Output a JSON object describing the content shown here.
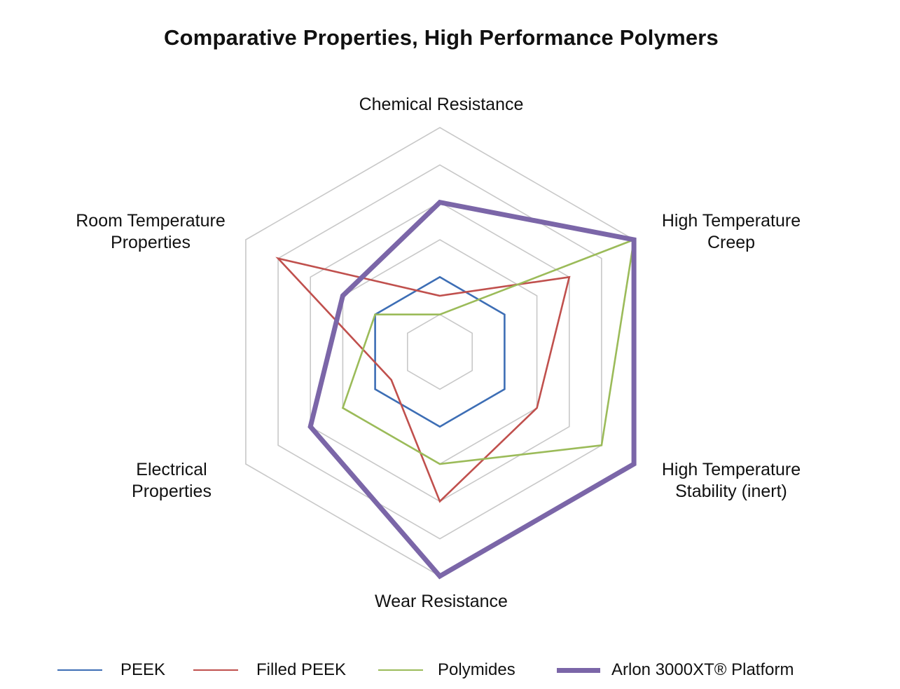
{
  "chart_data": {
    "type": "radar",
    "title": "Comparative Properties, High Performance Polymers",
    "axes": [
      {
        "lines": [
          "Chemical Resistance"
        ]
      },
      {
        "lines": [
          "High Temperature",
          "Creep"
        ]
      },
      {
        "lines": [
          "High Temperature",
          "Stability (inert)"
        ]
      },
      {
        "lines": [
          "Wear Resistance"
        ]
      },
      {
        "lines": [
          "Electrical",
          "Properties"
        ]
      },
      {
        "lines": [
          "Room Temperature",
          "Properties"
        ]
      }
    ],
    "scale": {
      "min": 0,
      "max": 6,
      "rings": 6
    },
    "grid": true,
    "legend_position": "bottom",
    "series": [
      {
        "name": "PEEK",
        "color": "#3d6eb5",
        "width": "thin",
        "values": [
          2,
          2,
          2,
          2,
          2,
          2
        ]
      },
      {
        "name": "Filled PEEK",
        "color": "#c0504d",
        "width": "thin",
        "values": [
          1.5,
          4,
          3,
          4,
          1.5,
          5
        ]
      },
      {
        "name": "Polymides",
        "color": "#9bbb59",
        "width": "thin",
        "values": [
          1,
          6,
          5,
          3,
          3,
          2
        ]
      },
      {
        "name": "Arlon 3000XT® Platform",
        "color": "#7b66a8",
        "width": "thick",
        "values": [
          4,
          6,
          6,
          6,
          4,
          3
        ]
      }
    ],
    "colors": {
      "grid": "#c8c8c8",
      "text": "#111111",
      "background": "#ffffff"
    }
  }
}
